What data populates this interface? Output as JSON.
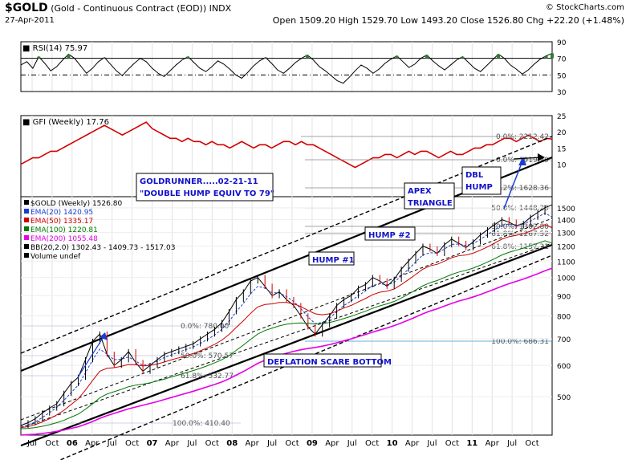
{
  "header": {
    "symbol": "$GOLD",
    "name": "(Gold - Continuous Contract (EOD))",
    "exchange": "INDX",
    "date": "27-Apr-2011",
    "brand": "© StockCharts.com",
    "ohlc": "Open 1509.20  High 1529.70  Low 1493.20  Close 1526.80  Chg +22.20 (+1.48%)"
  },
  "chart_data": [
    {
      "type": "line",
      "panel": "rsi",
      "title": "RSI(14) 75.97",
      "ylim": [
        30,
        90
      ],
      "yticks": [
        30,
        50,
        70,
        90
      ],
      "reference_lines": [
        70,
        50,
        30
      ],
      "last_value": 75.97,
      "values": [
        62,
        66,
        58,
        72,
        64,
        55,
        60,
        68,
        75,
        70,
        61,
        52,
        58,
        66,
        71,
        63,
        55,
        49,
        57,
        64,
        70,
        66,
        58,
        52,
        48,
        55,
        62,
        68,
        72,
        65,
        58,
        54,
        60,
        67,
        63,
        57,
        50,
        46,
        53,
        61,
        67,
        71,
        64,
        56,
        52,
        58,
        65,
        70,
        74,
        68,
        60,
        55,
        49,
        43,
        40,
        47,
        55,
        62,
        58,
        52,
        57,
        64,
        69,
        73,
        66,
        59,
        63,
        70,
        74,
        67,
        61,
        56,
        62,
        68,
        72,
        65,
        58,
        54,
        61,
        68,
        75,
        70,
        62,
        57,
        51,
        56,
        63,
        69,
        73,
        76
      ]
    },
    {
      "type": "line",
      "panel": "gfi",
      "title": "GFI (Weekly) 17.76",
      "ylim": [
        0,
        25
      ],
      "yticks": [
        10,
        15,
        20,
        25
      ],
      "last_value": 17.76,
      "fib_levels": [
        {
          "label": "0.0%: 2212.42"
        },
        {
          "label": "0.0%: 1919.29"
        },
        {
          "label": "38.2%: 1628.36"
        },
        {
          "label": "50.0%: 1448.29"
        },
        {
          "label": "50.0%: 1302.80"
        },
        {
          "label": "61.8%: 1267.52"
        },
        {
          "label": "61.8%: 1157.31"
        },
        {
          "label": "100.0%: 686.31"
        }
      ],
      "values": [
        10,
        11,
        12,
        12,
        13,
        14,
        14,
        15,
        16,
        17,
        18,
        19,
        20,
        21,
        22,
        21,
        20,
        19,
        20,
        21,
        22,
        23,
        21,
        20,
        19,
        18,
        18,
        17,
        18,
        17,
        17,
        16,
        17,
        16,
        16,
        15,
        16,
        17,
        16,
        15,
        16,
        16,
        15,
        16,
        17,
        17,
        16,
        17,
        16,
        16,
        15,
        14,
        13,
        12,
        11,
        10,
        9,
        10,
        11,
        12,
        12,
        13,
        13,
        12,
        13,
        14,
        13,
        14,
        14,
        13,
        12,
        13,
        14,
        13,
        13,
        14,
        15,
        15,
        16,
        16,
        17,
        18,
        18,
        17,
        18,
        19,
        18,
        17,
        18,
        17.76
      ]
    },
    {
      "type": "line",
      "panel": "price",
      "title": "$GOLD (Weekly) 1526.80",
      "x_labels": [
        "Jul",
        "Oct",
        "06",
        "Apr",
        "Jul",
        "Oct",
        "07",
        "Apr",
        "Jul",
        "Oct",
        "08",
        "Apr",
        "Jul",
        "Oct",
        "09",
        "Apr",
        "Jul",
        "Oct",
        "10",
        "Apr",
        "Jul",
        "Oct",
        "11",
        "Apr",
        "Jul",
        "Oct"
      ],
      "ylim": [
        400,
        1600
      ],
      "yticks": [
        500,
        600,
        700,
        800,
        900,
        1000,
        1100,
        1200,
        1300,
        1400,
        1500
      ],
      "log_scale": true,
      "legend": [
        {
          "label": "$GOLD (Weekly) 1526.80",
          "color": "#000000"
        },
        {
          "label": "EMA(20) 1420.95",
          "color": "#1a3fcf"
        },
        {
          "label": "EMA(50) 1335.17",
          "color": "#cc0000"
        },
        {
          "label": "EMA(100) 1220.81",
          "color": "#007a00"
        },
        {
          "label": "EMA(200) 1055.48",
          "color": "#e600e6"
        },
        {
          "label": "BB(20,2.0) 1302.43 - 1409.73 - 1517.03",
          "color": "#000000"
        },
        {
          "label": "Volume undef",
          "color": "#000000"
        }
      ],
      "left_fib_labels": [
        {
          "label": "0.0%: 780.00"
        },
        {
          "label": "50.0%: 570.57"
        },
        {
          "label": "61.8%: 532.77"
        },
        {
          "label": "100.0%: 410.40"
        }
      ],
      "annotations": [
        "GOLDRUNNER.....02-21-11 \"DOUBLE HUMP EQUIV TO 79\"",
        "DBL HUMP",
        "APEX TRIANGLE",
        "HUMP #2",
        "HUMP #1",
        "DEFLATION SCARE BOTTOM"
      ],
      "series": [
        {
          "name": "$GOLD (Weekly)",
          "values": [
            423,
            430,
            440,
            455,
            468,
            480,
            510,
            540,
            560,
            620,
            690,
            720,
            640,
            600,
            620,
            650,
            610,
            580,
            600,
            620,
            640,
            650,
            660,
            670,
            680,
            700,
            720,
            740,
            770,
            820,
            880,
            920,
            980,
            1000,
            950,
            900,
            920,
            880,
            850,
            800,
            750,
            720,
            760,
            800,
            850,
            880,
            900,
            940,
            960,
            1000,
            980,
            950,
            990,
            1050,
            1100,
            1150,
            1200,
            1180,
            1150,
            1210,
            1250,
            1220,
            1190,
            1230,
            1280,
            1320,
            1360,
            1400,
            1380,
            1350,
            1370,
            1420,
            1460,
            1500,
            1526.8
          ]
        },
        {
          "name": "EMA(20)",
          "values": [
            420,
            424,
            432,
            443,
            456,
            470,
            490,
            512,
            535,
            575,
            620,
            660,
            640,
            620,
            622,
            630,
            615,
            600,
            605,
            615,
            628,
            638,
            648,
            658,
            668,
            682,
            698,
            716,
            740,
            775,
            820,
            860,
            910,
            950,
            940,
            915,
            915,
            895,
            870,
            835,
            795,
            765,
            770,
            790,
            820,
            850,
            872,
            900,
            925,
            955,
            965,
            958,
            972,
            1010,
            1050,
            1095,
            1140,
            1155,
            1152,
            1180,
            1212,
            1215,
            1205,
            1218,
            1248,
            1283,
            1320,
            1357,
            1365,
            1358,
            1362,
            1390,
            1420,
            1455,
            1420.95
          ]
        },
        {
          "name": "EMA(50)",
          "values": [
            418,
            420,
            425,
            432,
            440,
            450,
            462,
            478,
            494,
            520,
            550,
            580,
            590,
            592,
            597,
            603,
            602,
            598,
            600,
            605,
            612,
            620,
            627,
            635,
            643,
            653,
            665,
            678,
            695,
            718,
            748,
            778,
            812,
            843,
            855,
            858,
            865,
            865,
            858,
            845,
            826,
            810,
            805,
            810,
            822,
            838,
            850,
            868,
            885,
            905,
            918,
            924,
            935,
            960,
            988,
            1018,
            1050,
            1070,
            1080,
            1100,
            1122,
            1135,
            1140,
            1152,
            1172,
            1195,
            1222,
            1250,
            1268,
            1278,
            1290,
            1310,
            1335,
            1360,
            1335.17
          ]
        },
        {
          "name": "EMA(100)",
          "values": [
            415,
            416,
            418,
            421,
            425,
            430,
            436,
            444,
            452,
            465,
            480,
            497,
            508,
            515,
            522,
            530,
            535,
            538,
            542,
            548,
            554,
            561,
            568,
            575,
            582,
            590,
            599,
            609,
            620,
            635,
            655,
            675,
            698,
            720,
            735,
            745,
            755,
            762,
            766,
            768,
            766,
            764,
            765,
            770,
            778,
            788,
            798,
            810,
            822,
            836,
            848,
            858,
            870,
            888,
            908,
            930,
            953,
            970,
            983,
            1000,
            1018,
            1032,
            1043,
            1056,
            1074,
            1094,
            1116,
            1140,
            1158,
            1172,
            1186,
            1204,
            1220,
            1238,
            1220.81
          ]
        },
        {
          "name": "EMA(200)",
          "values": [
            400,
            401,
            402,
            404,
            406,
            409,
            412,
            416,
            420,
            426,
            433,
            441,
            448,
            454,
            460,
            466,
            471,
            476,
            481,
            486,
            492,
            498,
            504,
            510,
            516,
            523,
            530,
            537,
            545,
            555,
            567,
            579,
            593,
            607,
            618,
            627,
            636,
            644,
            651,
            657,
            662,
            666,
            671,
            677,
            684,
            692,
            700,
            709,
            718,
            728,
            737,
            746,
            756,
            768,
            781,
            795,
            810,
            823,
            834,
            847,
            860,
            872,
            882,
            893,
            906,
            920,
            935,
            951,
            965,
            978,
            991,
            1006,
            1022,
            1040,
            1055.48
          ]
        }
      ]
    }
  ]
}
